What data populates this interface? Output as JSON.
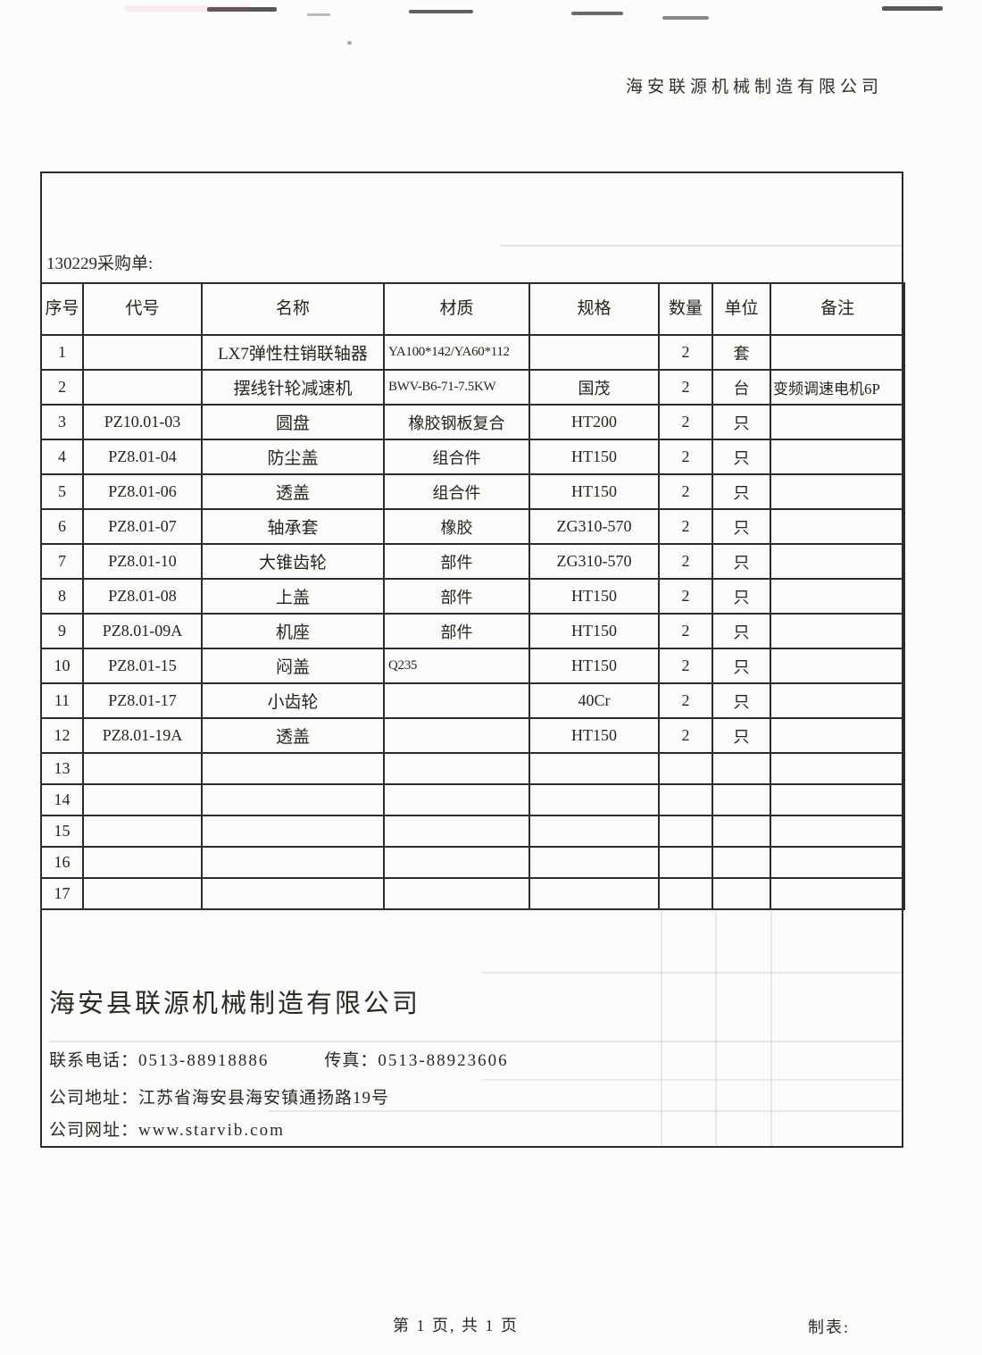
{
  "page": {
    "corp_header": "海安联源机械制造有限公司",
    "doc_label": "130229采购单:",
    "footer_page_info": "第 1 页, 共 1 页",
    "footer_maker_label": "制表:"
  },
  "table": {
    "columns": [
      "序号",
      "代号",
      "名称",
      "材质",
      "规格",
      "数量",
      "单位",
      "备注"
    ],
    "rows": [
      {
        "no": "1",
        "code": "",
        "name": "LX7弹性柱销联轴器",
        "material": "YA100*142/YA60*112",
        "spec": "",
        "qty": "2",
        "unit": "套",
        "note": ""
      },
      {
        "no": "2",
        "code": "",
        "name": "摆线针轮减速机",
        "material": "BWV-B6-71-7.5KW",
        "spec": "国茂",
        "qty": "2",
        "unit": "台",
        "note": "变频调速电机6P"
      },
      {
        "no": "3",
        "code": "PZ10.01-03",
        "name": "圆盘",
        "material": "橡胶钢板复合",
        "spec": "HT200",
        "qty": "2",
        "unit": "只",
        "note": ""
      },
      {
        "no": "4",
        "code": "PZ8.01-04",
        "name": "防尘盖",
        "material": "组合件",
        "spec": "HT150",
        "qty": "2",
        "unit": "只",
        "note": ""
      },
      {
        "no": "5",
        "code": "PZ8.01-06",
        "name": "透盖",
        "material": "组合件",
        "spec": "HT150",
        "qty": "2",
        "unit": "只",
        "note": ""
      },
      {
        "no": "6",
        "code": "PZ8.01-07",
        "name": "轴承套",
        "material": "橡胶",
        "spec": "ZG310-570",
        "qty": "2",
        "unit": "只",
        "note": ""
      },
      {
        "no": "7",
        "code": "PZ8.01-10",
        "name": "大锥齿轮",
        "material": "部件",
        "spec": "ZG310-570",
        "qty": "2",
        "unit": "只",
        "note": ""
      },
      {
        "no": "8",
        "code": "PZ8.01-08",
        "name": "上盖",
        "material": "部件",
        "spec": "HT150",
        "qty": "2",
        "unit": "只",
        "note": ""
      },
      {
        "no": "9",
        "code": "PZ8.01-09A",
        "name": "机座",
        "material": "部件",
        "spec": "HT150",
        "qty": "2",
        "unit": "只",
        "note": ""
      },
      {
        "no": "10",
        "code": "PZ8.01-15",
        "name": "闷盖",
        "material": "Q235",
        "spec": "HT150",
        "qty": "2",
        "unit": "只",
        "note": ""
      },
      {
        "no": "11",
        "code": "PZ8.01-17",
        "name": "小齿轮",
        "material": "",
        "spec": "40Cr",
        "qty": "2",
        "unit": "只",
        "note": ""
      },
      {
        "no": "12",
        "code": "PZ8.01-19A",
        "name": "透盖",
        "material": "",
        "spec": "HT150",
        "qty": "2",
        "unit": "只",
        "note": ""
      },
      {
        "no": "13",
        "code": "",
        "name": "",
        "material": "",
        "spec": "",
        "qty": "",
        "unit": "",
        "note": ""
      },
      {
        "no": "14",
        "code": "",
        "name": "",
        "material": "",
        "spec": "",
        "qty": "",
        "unit": "",
        "note": ""
      },
      {
        "no": "15",
        "code": "",
        "name": "",
        "material": "",
        "spec": "",
        "qty": "",
        "unit": "",
        "note": ""
      },
      {
        "no": "16",
        "code": "",
        "name": "",
        "material": "",
        "spec": "",
        "qty": "",
        "unit": "",
        "note": ""
      },
      {
        "no": "17",
        "code": "",
        "name": "",
        "material": "",
        "spec": "",
        "qty": "",
        "unit": "",
        "note": ""
      }
    ]
  },
  "company": {
    "name": "海安县联源机械制造有限公司",
    "phone_label": "联系电话：",
    "phone": "0513-88918886",
    "fax_label": "传真：",
    "fax": "0513-88923606",
    "address_label": "公司地址：",
    "address": "江苏省海安县海安镇通扬路19号",
    "website_label": "公司网址：",
    "website": "www.starvib.com"
  },
  "colors": {
    "ink": "#2b2926",
    "border": "#2e2d2c",
    "paper": "#fcfcfa"
  }
}
